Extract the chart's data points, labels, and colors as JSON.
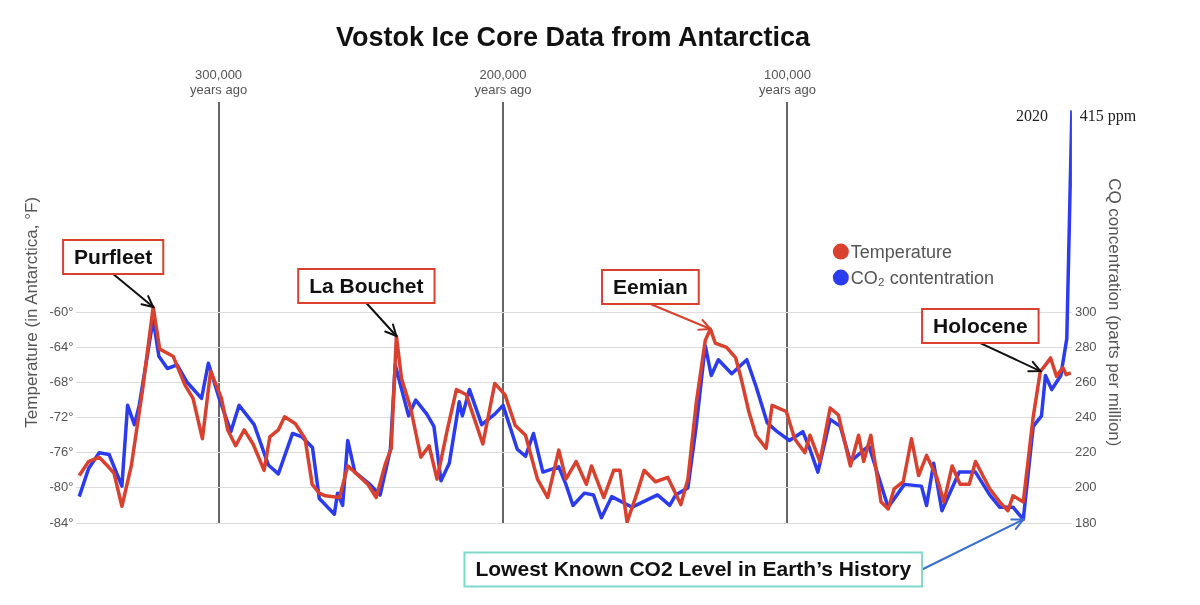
{
  "chart_data": {
    "type": "line",
    "title": "Vostok Ice Core Data from Antarctica",
    "ylabel": "Temperature (in Antarctica, °F)",
    "y2label": "CQ concentration (parts per million)",
    "xlim": [
      350000,
      0
    ],
    "xticks": [
      {
        "value": 300000,
        "label": "300,000\nyears ago"
      },
      {
        "value": 200000,
        "label": "200,000\nyears ago"
      },
      {
        "value": 100000,
        "label": "100,000\nyears ago"
      }
    ],
    "ylim": [
      -84,
      -36
    ],
    "yticks": [
      {
        "value": -84,
        "label": "-84°"
      },
      {
        "value": -80,
        "label": "-80°"
      },
      {
        "value": -76,
        "label": "-76°"
      },
      {
        "value": -72,
        "label": "-72°"
      },
      {
        "value": -68,
        "label": "-68°"
      },
      {
        "value": -64,
        "label": "-64°"
      },
      {
        "value": -60,
        "label": "-60°"
      }
    ],
    "y2lim": [
      180,
      420
    ],
    "y2ticks": [
      180,
      200,
      220,
      240,
      260,
      280,
      300
    ],
    "grid": true,
    "legend": "top right",
    "marker": "none",
    "line_style": "solid",
    "series": [
      {
        "name": "Temperature",
        "color": "#d9412e",
        "x": [
          349000,
          345700,
          342000,
          339600,
          336800,
          334000,
          330700,
          326800,
          323000,
          320700,
          316000,
          311800,
          309000,
          305700,
          302800,
          299000,
          296800,
          294000,
          291000,
          287900,
          284000,
          282000,
          279000,
          276800,
          273000,
          269600,
          267100,
          264600,
          262500,
          257500,
          254600,
          251800,
          247500,
          244600,
          241400,
          239300,
          237500,
          235700,
          232500,
          228900,
          226000,
          223200,
          219600,
          216400,
          212900,
          207100,
          202900,
          199300,
          195700,
          192100,
          187900,
          184300,
          180400,
          177900,
          174300,
          170700,
          168900,
          164600,
          161100,
          158900,
          156400,
          152900,
          150400,
          146400,
          142100,
          137500,
          135000,
          132100,
          128900,
          127100,
          125400,
          121400,
          118200,
          116100,
          113600,
          111100,
          107500,
          105400,
          100400,
          97500,
          93900,
          92100,
          88600,
          85000,
          82100,
          77900,
          75000,
          73200,
          70700,
          67100,
          64600,
          62500,
          59300,
          56400,
          53900,
          51100,
          47500,
          45000,
          42100,
          39300,
          36100,
          33900,
          28900,
          25400,
          22500,
          20700,
          17100,
          13600,
          11100,
          10000,
          7500,
          5400,
          3200,
          2000,
          400
        ],
        "values": [
          -78.6,
          -77.0,
          -76.5,
          -77.3,
          -78.3,
          -82.1,
          -77.5,
          -69.0,
          -59.4,
          -64.2,
          -65.0,
          -68.3,
          -69.8,
          -74.4,
          -66.7,
          -69.8,
          -73.4,
          -75.2,
          -73.4,
          -75.0,
          -78.0,
          -74.2,
          -73.4,
          -71.9,
          -72.7,
          -74.4,
          -79.6,
          -80.6,
          -80.9,
          -81.1,
          -77.5,
          -78.3,
          -79.6,
          -81.1,
          -77.3,
          -75.5,
          -62.7,
          -67.5,
          -70.9,
          -76.5,
          -75.2,
          -79.0,
          -73.4,
          -68.8,
          -69.4,
          -75.0,
          -68.1,
          -69.4,
          -72.9,
          -74.0,
          -79.0,
          -81.1,
          -75.7,
          -79.0,
          -77.0,
          -79.6,
          -77.5,
          -81.1,
          -78.0,
          -78.0,
          -83.9,
          -80.6,
          -78.0,
          -79.3,
          -78.8,
          -81.9,
          -79.0,
          -70.4,
          -63.2,
          -61.9,
          -63.5,
          -64.0,
          -65.2,
          -67.8,
          -71.3,
          -74.0,
          -75.5,
          -70.6,
          -71.3,
          -74.4,
          -76.0,
          -74.0,
          -77.0,
          -70.9,
          -71.7,
          -77.5,
          -74.0,
          -77.0,
          -74.0,
          -81.6,
          -82.4,
          -80.1,
          -79.3,
          -74.4,
          -78.6,
          -76.3,
          -78.8,
          -81.6,
          -77.5,
          -79.6,
          -79.6,
          -77.0,
          -80.1,
          -81.6,
          -82.6,
          -80.9,
          -81.6,
          -71.9,
          -66.7,
          -66.3,
          -65.2,
          -67.3,
          -66.3,
          -67.1,
          -66.9
        ]
      },
      {
        "name": "CO₂ contentration",
        "color": "#2b3cf0",
        "axis": "y2",
        "x": [
          349000,
          345700,
          342000,
          338500,
          334000,
          332000,
          329600,
          327900,
          323000,
          321000,
          318000,
          314600,
          311000,
          306000,
          303600,
          300000,
          295700,
          292800,
          287500,
          282500,
          279000,
          274000,
          270700,
          267000,
          264600,
          259300,
          258200,
          256400,
          254600,
          252100,
          246800,
          243200,
          239600,
          237900,
          233200,
          230700,
          226800,
          224300,
          221800,
          218900,
          215400,
          214300,
          211800,
          207500,
          202900,
          200000,
          195000,
          192100,
          189300,
          186000,
          180400,
          177900,
          175400,
          171400,
          168200,
          165400,
          161800,
          154600,
          145700,
          141400,
          139300,
          135000,
          132100,
          128900,
          126800,
          124300,
          119600,
          114300,
          111100,
          107100,
          103600,
          99300,
          94600,
          92100,
          89300,
          85000,
          81400,
          77900,
          71400,
          64600,
          58900,
          52900,
          51100,
          48600,
          45700,
          39600,
          33900,
          28900,
          25400,
          20700,
          17100,
          13600,
          10700,
          9300,
          7100,
          3900,
          1800,
          0
        ],
        "values": [
          195,
          211,
          220,
          219,
          201,
          247,
          236,
          247,
          296,
          275,
          268,
          270,
          260,
          251,
          271,
          252,
          232,
          247,
          236,
          213,
          208,
          231,
          229,
          223,
          194,
          185,
          197,
          190,
          227,
          209,
          202,
          196,
          222,
          270,
          241,
          250,
          242,
          235,
          204,
          214,
          249,
          241,
          256,
          236,
          242,
          247,
          222,
          218,
          231,
          209,
          212,
          202,
          190,
          197,
          196,
          183,
          195,
          189,
          196,
          190,
          196,
          200,
          235,
          281,
          264,
          273,
          265,
          273,
          258,
          237,
          232,
          227,
          232,
          222,
          209,
          239,
          235,
          215,
          224,
          189,
          202,
          201,
          190,
          214,
          187,
          209,
          209,
          196,
          189,
          189,
          182,
          235,
          241,
          264,
          256,
          264,
          285,
          415
        ]
      }
    ],
    "annotations": [
      {
        "text": "Purfleet",
        "x": 323000,
        "y": -59.4
      },
      {
        "text": "La Bouchet",
        "x": 237500,
        "y": -62.7
      },
      {
        "text": "Eemian",
        "x": 127100,
        "y": -61.9
      },
      {
        "text": "Holocene",
        "x": 11100,
        "y": -66.7
      },
      {
        "text": "Lowest Known CO2 Level in Earth’s History",
        "x": 17100,
        "y": -83.6
      },
      {
        "text": "2020",
        "x": 0,
        "y": -37
      },
      {
        "text": "415 ppm",
        "x": 0,
        "y": -37
      }
    ]
  }
}
